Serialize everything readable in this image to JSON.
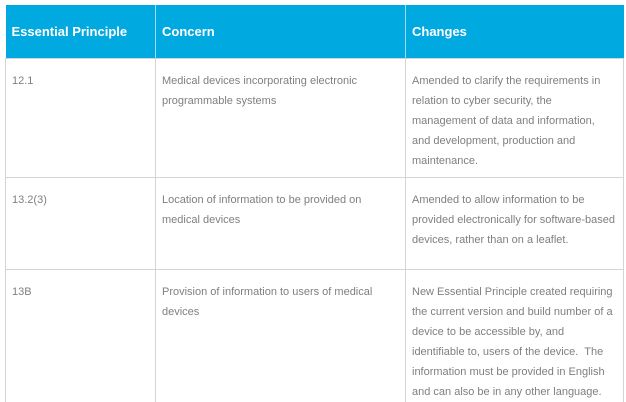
{
  "table": {
    "columns": [
      {
        "label": "Essential Principle"
      },
      {
        "label": "Concern"
      },
      {
        "label": "Changes"
      }
    ],
    "rows": [
      {
        "principle": "12.1",
        "concern": "Medical devices incorporating electronic programmable systems",
        "changes": "Amended to clarify the requirements in relation to cyber security, the management of data and information, and development, production and maintenance."
      },
      {
        "principle": "13.2(3)",
        "concern": "Location of information to be provided on medical devices",
        "changes": "Amended to allow information to be provided electronically for software-based devices, rather than on a leaflet."
      },
      {
        "principle": "13B",
        "concern": "Provision of information to users of medical devices",
        "changes": "New Essential Principle created requiring the current version and build number of a device to be accessible by, and identifiable to, users of the device.  The information must be provided in English and can also be in any other language."
      }
    ],
    "colors": {
      "header_bg": "#00A9E0",
      "header_text": "#FFFFFF",
      "header_divider": "#9ADCF2",
      "body_text": "#7F7F7F",
      "border": "#D4D4D4"
    }
  }
}
